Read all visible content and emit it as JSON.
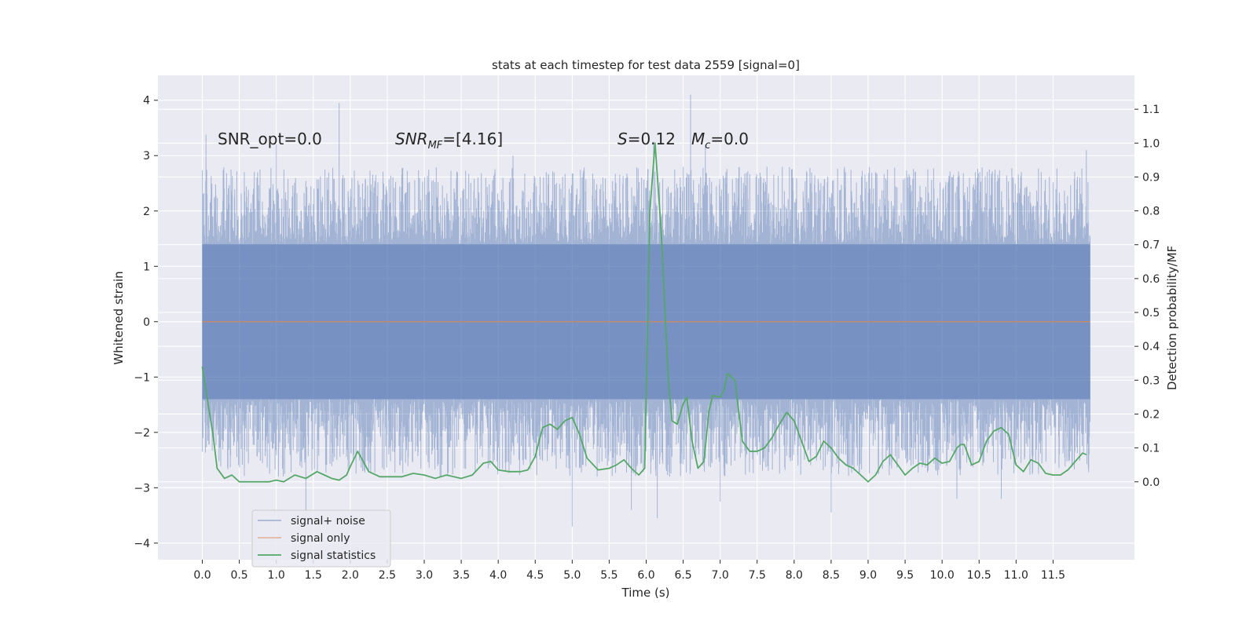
{
  "chart_data": {
    "type": "line",
    "title": "stats at each timestep for test data 2559 [signal=0]",
    "xlabel": "Time (s)",
    "ylabel_left": "Whitened strain",
    "ylabel_right": "Detection probability/MF",
    "xlim": [
      -0.6,
      12.6
    ],
    "ylim_left": [
      -4.3,
      4.45
    ],
    "ylim_right": [
      -0.23,
      1.2
    ],
    "x_ticks": [
      0.0,
      0.5,
      1.0,
      1.5,
      2.0,
      2.5,
      3.0,
      3.5,
      4.0,
      4.5,
      5.0,
      5.5,
      6.0,
      6.5,
      7.0,
      7.5,
      8.0,
      8.5,
      9.0,
      9.5,
      10.0,
      10.5,
      11.0,
      11.5
    ],
    "x_tick_labels": [
      "0.0",
      "0.5",
      "1.0",
      "1.5",
      "2.0",
      "2.5",
      "3.0",
      "3.5",
      "4.0",
      "4.5",
      "5.0",
      "5.5",
      "6.0",
      "6.5",
      "7.0",
      "7.5",
      "8.0",
      "8.5",
      "9.0",
      "9.5",
      "10.0",
      "10.5",
      "11.0",
      "11.5"
    ],
    "y_left_ticks": [
      -4,
      -3,
      -2,
      -1,
      0,
      1,
      2,
      3,
      4
    ],
    "y_left_tick_labels": [
      "−4",
      "−3",
      "−2",
      "−1",
      "0",
      "1",
      "2",
      "3",
      "4"
    ],
    "y_right_ticks": [
      0.0,
      0.1,
      0.2,
      0.3,
      0.4,
      0.5,
      0.6,
      0.7,
      0.8,
      0.9,
      1.0,
      1.1
    ],
    "y_right_tick_labels": [
      "0.0",
      "0.1",
      "0.2",
      "0.3",
      "0.4",
      "0.5",
      "0.6",
      "0.7",
      "0.8",
      "0.9",
      "1.0",
      "1.1"
    ],
    "grid": true,
    "legend_position": "lower-left",
    "annotations": {
      "snr_opt": "SNR_opt=0.0",
      "snr_mf_main": "SNR",
      "snr_mf_sub": "MF",
      "snr_mf_rest": "=[4.16]",
      "s_symbol": "S",
      "s_value": "=0.12",
      "mc_symbol": "M",
      "mc_sub": "c",
      "mc_value": "=0.0"
    },
    "series": [
      {
        "name": "signal+ noise",
        "color": "#4c72b0",
        "axis": "left",
        "x_range": [
          0.0,
          12.0
        ],
        "envelope_upper_typical": 2.0,
        "envelope_lower_typical": -2.0,
        "band_dense": [
          -1.4,
          1.4
        ],
        "peaks": [
          {
            "x": 0.05,
            "y": 3.38
          },
          {
            "x": 1.85,
            "y": 3.95
          },
          {
            "x": 6.6,
            "y": 4.1
          },
          {
            "x": 6.1,
            "y": 3.25
          },
          {
            "x": 6.8,
            "y": 3.2
          },
          {
            "x": 11.95,
            "y": 3.1
          },
          {
            "x": 4.2,
            "y": 3.0
          },
          {
            "x": 1.0,
            "y": 3.2
          },
          {
            "x": 5.0,
            "y": -3.7
          },
          {
            "x": 6.15,
            "y": -3.55
          },
          {
            "x": 8.5,
            "y": -3.45
          },
          {
            "x": 1.4,
            "y": -3.4
          },
          {
            "x": 5.8,
            "y": -3.4
          },
          {
            "x": 7.0,
            "y": -3.25
          },
          {
            "x": 10.2,
            "y": -3.2
          },
          {
            "x": 10.8,
            "y": -3.2
          }
        ]
      },
      {
        "name": "signal only",
        "color": "#dd8452",
        "axis": "left",
        "x": [
          0.0,
          12.0
        ],
        "y": [
          0.0,
          0.0
        ]
      },
      {
        "name": "signal statistics",
        "color": "#55a868",
        "axis": "right",
        "x": [
          0.0,
          0.05,
          0.1,
          0.15,
          0.2,
          0.3,
          0.4,
          0.5,
          0.6,
          0.75,
          0.9,
          1.0,
          1.1,
          1.25,
          1.4,
          1.55,
          1.65,
          1.75,
          1.85,
          1.95,
          2.0,
          2.1,
          2.25,
          2.4,
          2.55,
          2.7,
          2.85,
          3.0,
          3.15,
          3.3,
          3.5,
          3.65,
          3.8,
          3.9,
          4.0,
          4.15,
          4.3,
          4.4,
          4.5,
          4.6,
          4.7,
          4.8,
          4.9,
          5.0,
          5.1,
          5.2,
          5.35,
          5.5,
          5.6,
          5.7,
          5.8,
          5.9,
          5.98,
          6.05,
          6.12,
          6.2,
          6.3,
          6.35,
          6.42,
          6.5,
          6.55,
          6.62,
          6.7,
          6.78,
          6.85,
          6.9,
          7.0,
          7.05,
          7.1,
          7.2,
          7.3,
          7.4,
          7.5,
          7.6,
          7.7,
          7.8,
          7.9,
          8.0,
          8.1,
          8.2,
          8.3,
          8.4,
          8.5,
          8.6,
          8.7,
          8.8,
          8.9,
          9.0,
          9.1,
          9.2,
          9.3,
          9.4,
          9.5,
          9.6,
          9.7,
          9.8,
          9.9,
          10.0,
          10.1,
          10.2,
          10.25,
          10.3,
          10.4,
          10.5,
          10.6,
          10.7,
          10.8,
          10.9,
          11.0,
          11.1,
          11.2,
          11.3,
          11.4,
          11.5,
          11.6,
          11.7,
          11.8,
          11.9,
          11.95
        ],
        "y": [
          0.34,
          0.27,
          0.2,
          0.13,
          0.04,
          0.01,
          0.02,
          0.0,
          0.0,
          0.0,
          0.0,
          0.005,
          0.0,
          0.02,
          0.01,
          0.03,
          0.02,
          0.01,
          0.005,
          0.02,
          0.045,
          0.09,
          0.03,
          0.015,
          0.015,
          0.015,
          0.025,
          0.02,
          0.01,
          0.02,
          0.01,
          0.02,
          0.055,
          0.06,
          0.035,
          0.03,
          0.03,
          0.035,
          0.075,
          0.16,
          0.17,
          0.155,
          0.18,
          0.19,
          0.14,
          0.07,
          0.035,
          0.04,
          0.05,
          0.065,
          0.04,
          0.02,
          0.04,
          0.8,
          1.0,
          0.75,
          0.3,
          0.18,
          0.17,
          0.23,
          0.25,
          0.12,
          0.04,
          0.06,
          0.21,
          0.255,
          0.25,
          0.27,
          0.32,
          0.3,
          0.12,
          0.09,
          0.09,
          0.1,
          0.13,
          0.17,
          0.205,
          0.18,
          0.12,
          0.06,
          0.075,
          0.12,
          0.1,
          0.07,
          0.05,
          0.04,
          0.02,
          0.0,
          0.02,
          0.06,
          0.08,
          0.05,
          0.02,
          0.04,
          0.055,
          0.05,
          0.07,
          0.055,
          0.06,
          0.1,
          0.11,
          0.11,
          0.05,
          0.06,
          0.12,
          0.15,
          0.16,
          0.14,
          0.05,
          0.03,
          0.065,
          0.055,
          0.025,
          0.02,
          0.02,
          0.035,
          0.06,
          0.085,
          0.08
        ]
      }
    ]
  }
}
